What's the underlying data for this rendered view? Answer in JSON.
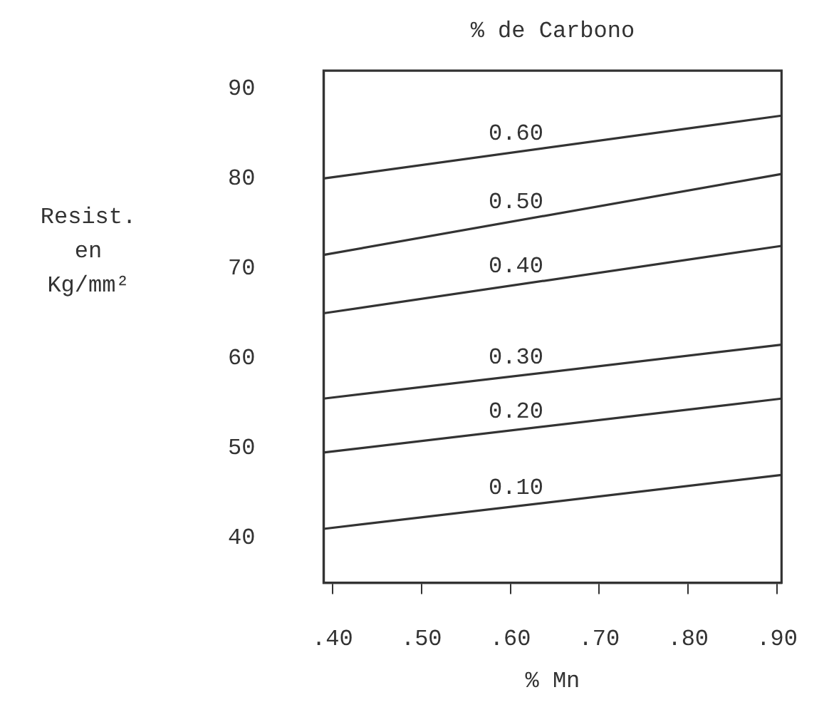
{
  "chart_data": {
    "type": "line",
    "title": "% de Carbono",
    "xlabel": "% Mn",
    "ylabel": "Resist. en Kg/mm²",
    "x": [
      0.39,
      0.905
    ],
    "xlim": [
      0.39,
      0.905
    ],
    "xticks": [
      {
        "value": 0.4,
        "label": ".40"
      },
      {
        "value": 0.5,
        "label": ".50"
      },
      {
        "value": 0.6,
        "label": ".60"
      },
      {
        "value": 0.7,
        "label": ".70"
      },
      {
        "value": 0.8,
        "label": ".80"
      },
      {
        "value": 0.9,
        "label": ".90"
      }
    ],
    "ylim": [
      35,
      92
    ],
    "yticks": [
      40,
      50,
      60,
      70,
      80,
      90
    ],
    "grid": false,
    "legend": false,
    "marker": "none",
    "line_style": "solid",
    "series": [
      {
        "name": "0.60",
        "color": "#333333",
        "values": [
          80,
          87
        ]
      },
      {
        "name": "0.50",
        "color": "#333333",
        "values": [
          71.5,
          80.5
        ]
      },
      {
        "name": "0.40",
        "color": "#333333",
        "values": [
          65,
          72.5
        ]
      },
      {
        "name": "0.30",
        "color": "#333333",
        "values": [
          55.5,
          61.5
        ]
      },
      {
        "name": "0.20",
        "color": "#333333",
        "values": [
          49.5,
          55.5
        ]
      },
      {
        "name": "0.10",
        "color": "#333333",
        "values": [
          41,
          47
        ]
      }
    ]
  }
}
